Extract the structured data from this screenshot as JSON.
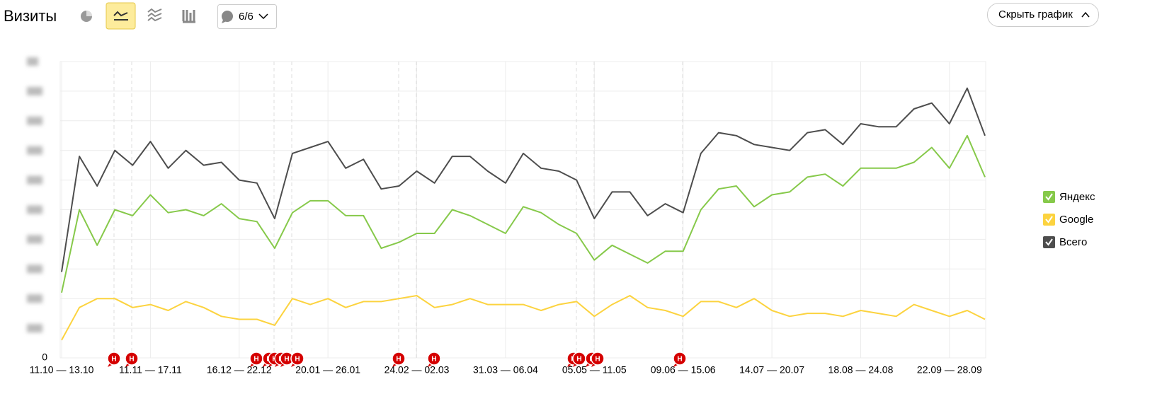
{
  "header": {
    "title": "Визиты",
    "comments_button": "6/6",
    "hide_chart_button": "Скрыть график"
  },
  "chart_data": {
    "type": "line",
    "categories": [
      "11.10 — 13.10",
      null,
      null,
      null,
      null,
      "11.11 — 17.11",
      null,
      null,
      null,
      null,
      "16.12 — 22.12",
      null,
      null,
      null,
      null,
      "20.01 — 26.01",
      null,
      null,
      null,
      null,
      "24.02 — 02.03",
      null,
      null,
      null,
      null,
      "31.03 — 06.04",
      null,
      null,
      null,
      null,
      "05.05 — 11.05",
      null,
      null,
      null,
      null,
      "09.06 — 15.06",
      null,
      null,
      null,
      null,
      "14.07 — 20.07",
      null,
      null,
      null,
      null,
      "18.08 — 24.08",
      null,
      null,
      null,
      null,
      "22.09 — 28.09",
      null,
      null
    ],
    "series": [
      {
        "name": "Яндекс",
        "color": "#86c94a",
        "values": [
          22,
          50,
          38,
          50,
          48,
          55,
          49,
          50,
          48,
          52,
          47,
          46,
          37,
          49,
          53,
          53,
          48,
          48,
          37,
          39,
          42,
          42,
          50,
          48,
          45,
          42,
          51,
          49,
          45,
          42,
          33,
          38,
          35,
          32,
          36,
          36,
          50,
          57,
          58,
          51,
          55,
          56,
          61,
          62,
          58,
          64,
          64,
          64,
          66,
          71,
          64,
          75,
          61
        ]
      },
      {
        "name": "Google",
        "color": "#fcd33f",
        "values": [
          6,
          17,
          20,
          20,
          17,
          18,
          16,
          19,
          17,
          14,
          13,
          13,
          11,
          20,
          18,
          20,
          17,
          19,
          19,
          20,
          21,
          17,
          18,
          20,
          18,
          18,
          18,
          16,
          18,
          19,
          14,
          18,
          21,
          17,
          16,
          14,
          19,
          19,
          17,
          20,
          16,
          14,
          15,
          15,
          14,
          16,
          15,
          14,
          18,
          16,
          14,
          16,
          13
        ]
      },
      {
        "name": "Всего",
        "color": "#4d4d4d",
        "values": [
          29,
          68,
          58,
          70,
          65,
          73,
          64,
          70,
          65,
          66,
          60,
          59,
          47,
          69,
          71,
          73,
          64,
          67,
          57,
          58,
          63,
          59,
          68,
          68,
          63,
          59,
          69,
          64,
          63,
          60,
          47,
          56,
          56,
          48,
          52,
          49,
          69,
          76,
          75,
          72,
          71,
          70,
          76,
          77,
          72,
          79,
          78,
          78,
          84,
          86,
          79,
          91,
          75
        ]
      }
    ],
    "ylim": [
      0,
      100
    ],
    "yticks": [
      0
    ],
    "annotations": [
      "Н",
      "Н",
      "Н",
      "Н",
      "Н",
      "Н",
      "Н",
      "Н",
      "Н",
      "Н",
      "Н",
      "Н",
      "Н",
      "Н",
      "Н"
    ]
  }
}
